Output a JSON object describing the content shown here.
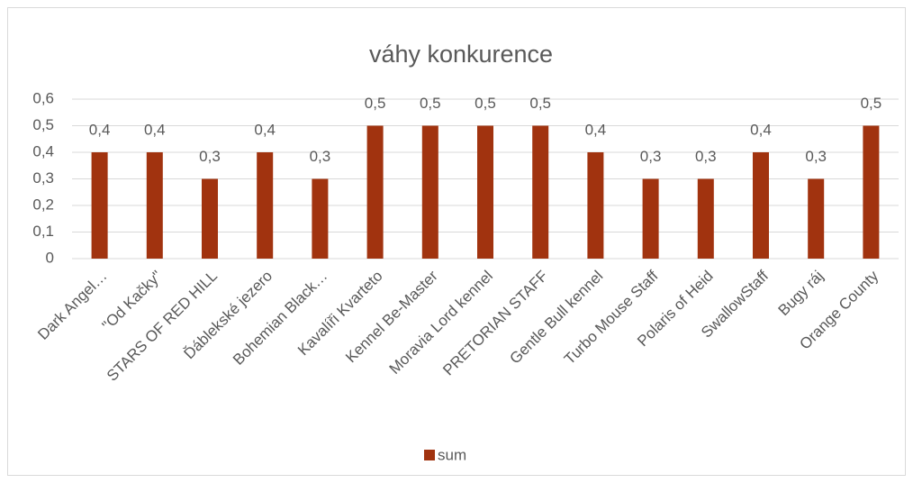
{
  "chart_data": {
    "type": "bar",
    "title": "váhy konkurence",
    "categories": [
      "Dark Angel…",
      "\"Od Kačky\"",
      "STARS OF RED HILL",
      "Ďáblekské jezero",
      "Bohemian Black…",
      "Kavalíři Kvarteto",
      "Kennel Be-Master",
      "Moravia Lord kennel",
      "PRETORIAN STAFF",
      "Gentle Bull kennel",
      "Turbo Mouse Staff",
      "Polaris of Heid",
      "SwallowStaff",
      "Bugy ráj",
      "Orange County"
    ],
    "series": [
      {
        "name": "sum",
        "color": "#a1330f",
        "values": [
          0.4,
          0.4,
          0.3,
          0.4,
          0.3,
          0.5,
          0.5,
          0.5,
          0.5,
          0.4,
          0.3,
          0.3,
          0.4,
          0.3,
          0.5
        ],
        "value_labels": [
          "0,4",
          "0,4",
          "0,3",
          "0,4",
          "0,3",
          "0,5",
          "0,5",
          "0,5",
          "0,5",
          "0,4",
          "0,3",
          "0,3",
          "0,4",
          "0,3",
          "0,5"
        ]
      }
    ],
    "ylim": [
      0,
      0.6
    ],
    "yticks": [
      0,
      {
        "value": 0.1,
        "label": "0,1"
      },
      {
        "value": 0.2,
        "label": "0,2"
      },
      {
        "value": 0.3,
        "label": "0,3"
      },
      {
        "value": 0.4,
        "label": "0,4"
      },
      {
        "value": 0.5,
        "label": "0,5"
      },
      {
        "value": 0.6,
        "label": "0,6"
      }
    ],
    "grid": true,
    "legend": "bottom"
  }
}
